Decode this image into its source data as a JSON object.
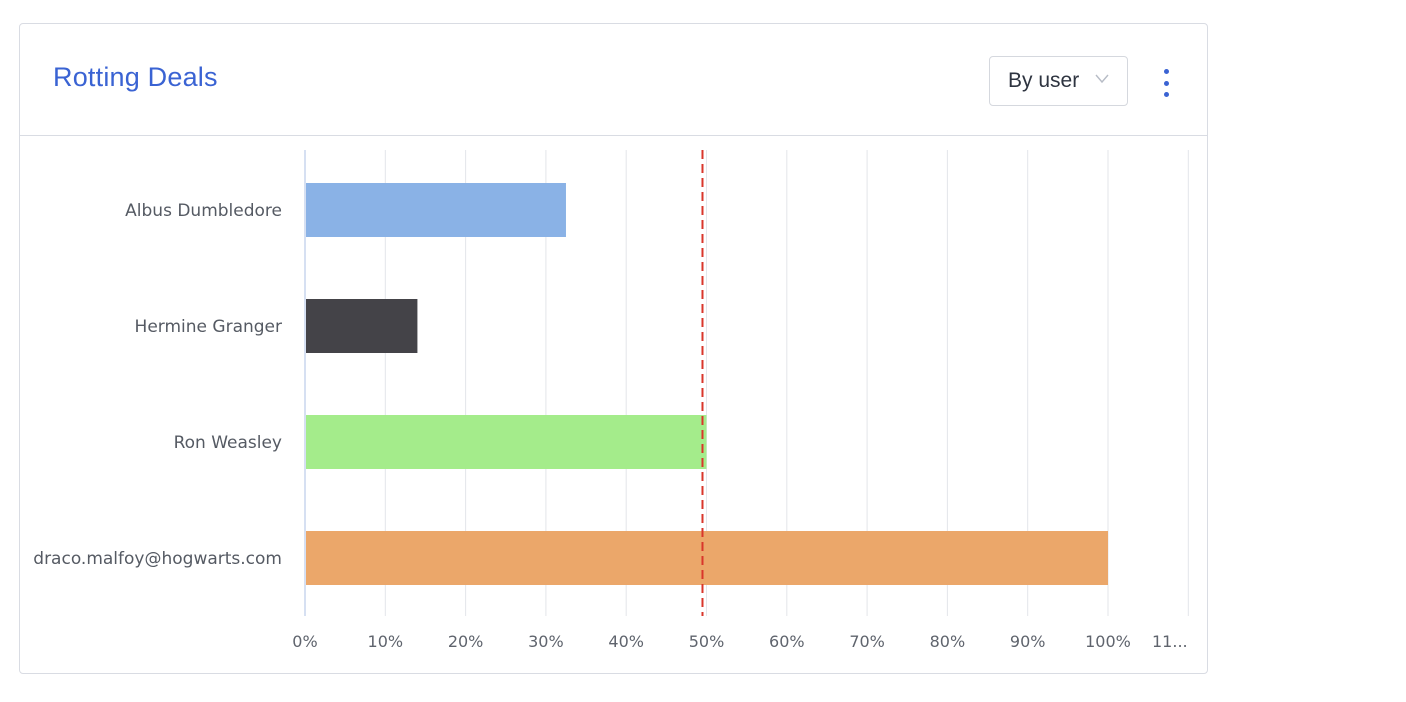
{
  "widget": {
    "title": "Rotting Deals",
    "group_by": {
      "selected": "By user"
    },
    "menu_icon": "vertical-dots-icon",
    "dropdown_icon": "chevron-down-icon",
    "accent_color": "#3a63d3"
  },
  "chart_data": {
    "type": "bar",
    "orientation": "horizontal",
    "categories": [
      "Albus Dumbledore",
      "Hermine Granger",
      "Ron Weasley",
      "draco.malfoy@hogwarts.com"
    ],
    "values": [
      32.5,
      14,
      50,
      100
    ],
    "colors": [
      "#8ab2e6",
      "#444348",
      "#a4ec8b",
      "#eba76a"
    ],
    "xlim": [
      0,
      110
    ],
    "x_ticks": [
      "0%",
      "10%",
      "20%",
      "30%",
      "40%",
      "50%",
      "60%",
      "70%",
      "80%",
      "90%",
      "100%",
      "11..."
    ],
    "reference_line": {
      "value": 49.5,
      "color": "#d9362b",
      "style": "dashed"
    },
    "grid": true,
    "legend": "none"
  }
}
